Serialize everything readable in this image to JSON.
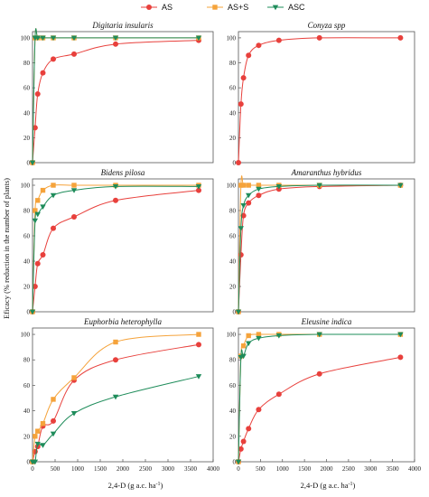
{
  "legend": [
    {
      "name": "AS",
      "color": "#e8403c",
      "marker": "circle"
    },
    {
      "name": "AS+S",
      "color": "#f5a33b",
      "marker": "square"
    },
    {
      "name": "ASC",
      "color": "#1e8c5a",
      "marker": "triangle-down"
    }
  ],
  "ylabel": "Eficacy (% reduction in the number of plants)",
  "xlabel": "2,4-D (g a.c. ha",
  "xlabel_sup": "-1",
  "xlabel_end": ")",
  "chart_data": [
    {
      "type": "scatter",
      "title": "Digitaria insularis",
      "xlim": [
        0,
        4000
      ],
      "ylim": [
        0,
        105
      ],
      "xticks": [],
      "yticks": [
        0,
        20,
        40,
        60,
        80,
        100
      ],
      "series": [
        {
          "name": "AS",
          "x": [
            0,
            57,
            115,
            230,
            460,
            920,
            1840,
            3680
          ],
          "y": [
            0,
            28,
            55,
            72,
            83,
            87,
            95,
            98
          ]
        },
        {
          "name": "AS+S",
          "x": [
            0,
            57,
            115,
            230,
            460,
            920,
            1840,
            3680
          ],
          "y": [
            0,
            100,
            100,
            100,
            100,
            100,
            100,
            100
          ]
        },
        {
          "name": "ASC",
          "x": [
            0,
            57,
            115,
            230,
            460,
            920,
            1840,
            3680
          ],
          "y": [
            0,
            100,
            100,
            100,
            100,
            100,
            100,
            100
          ]
        }
      ]
    },
    {
      "type": "scatter",
      "title": "Conyza spp",
      "xlim": [
        0,
        4000
      ],
      "ylim": [
        0,
        105
      ],
      "xticks": [],
      "yticks": [
        0,
        20,
        40,
        60,
        80,
        100
      ],
      "series": [
        {
          "name": "AS",
          "x": [
            0,
            57,
            115,
            230,
            460,
            920,
            1840,
            3680
          ],
          "y": [
            0,
            47,
            68,
            86,
            94,
            98,
            100,
            100
          ]
        }
      ]
    },
    {
      "type": "scatter",
      "title": "Bidens pilosa",
      "xlim": [
        0,
        4000
      ],
      "ylim": [
        0,
        105
      ],
      "xticks": [],
      "yticks": [
        0,
        20,
        40,
        60,
        80,
        100
      ],
      "series": [
        {
          "name": "AS",
          "x": [
            0,
            57,
            115,
            230,
            460,
            920,
            1840,
            3680
          ],
          "y": [
            0,
            20,
            38,
            45,
            66,
            75,
            88,
            96
          ]
        },
        {
          "name": "AS+S",
          "x": [
            0,
            57,
            115,
            230,
            460,
            920,
            1840,
            3680
          ],
          "y": [
            0,
            80,
            88,
            96,
            100,
            100,
            100,
            100
          ]
        },
        {
          "name": "ASC",
          "x": [
            0,
            57,
            115,
            230,
            460,
            920,
            1840,
            3680
          ],
          "y": [
            0,
            72,
            77,
            83,
            92,
            96,
            99,
            99
          ]
        }
      ]
    },
    {
      "type": "scatter",
      "title": "Amaranthus hybridus",
      "xlim": [
        0,
        4000
      ],
      "ylim": [
        0,
        105
      ],
      "xticks": [],
      "yticks": [
        0,
        20,
        40,
        60,
        80,
        100
      ],
      "series": [
        {
          "name": "AS",
          "x": [
            0,
            57,
            115,
            230,
            460,
            920,
            1840,
            3680
          ],
          "y": [
            0,
            45,
            76,
            86,
            92,
            97,
            99,
            100
          ]
        },
        {
          "name": "AS+S",
          "x": [
            0,
            57,
            115,
            230,
            460,
            920,
            1840,
            3680
          ],
          "y": [
            0,
            100,
            100,
            100,
            100,
            100,
            100,
            100
          ]
        },
        {
          "name": "ASC",
          "x": [
            0,
            57,
            115,
            230,
            460,
            920,
            1840,
            3680
          ],
          "y": [
            0,
            66,
            84,
            92,
            97,
            99,
            100,
            100
          ]
        }
      ]
    },
    {
      "type": "scatter",
      "title": "Euphorbia heterophylla",
      "xlim": [
        0,
        4000
      ],
      "ylim": [
        0,
        105
      ],
      "xticks": [
        0,
        500,
        1000,
        1500,
        2000,
        2500,
        3000,
        3500,
        4000
      ],
      "yticks": [
        0,
        20,
        40,
        60,
        80,
        100
      ],
      "series": [
        {
          "name": "AS",
          "x": [
            0,
            57,
            115,
            230,
            460,
            920,
            1840,
            3680
          ],
          "y": [
            0,
            8,
            12,
            28,
            32,
            64,
            80,
            92
          ]
        },
        {
          "name": "AS+S",
          "x": [
            0,
            57,
            115,
            230,
            460,
            920,
            1840,
            3680
          ],
          "y": [
            0,
            20,
            24,
            30,
            49,
            66,
            94,
            100
          ]
        },
        {
          "name": "ASC",
          "x": [
            0,
            57,
            115,
            230,
            460,
            920,
            1840,
            3680
          ],
          "y": [
            0,
            0,
            14,
            13,
            22,
            38,
            51,
            67
          ]
        }
      ]
    },
    {
      "type": "scatter",
      "title": "Eleusine indica",
      "xlim": [
        0,
        4000
      ],
      "ylim": [
        0,
        105
      ],
      "xticks": [
        0,
        500,
        1000,
        1500,
        2000,
        2500,
        3000,
        3500,
        4000
      ],
      "yticks": [
        0,
        20,
        40,
        60,
        80,
        100
      ],
      "series": [
        {
          "name": "AS",
          "x": [
            0,
            57,
            115,
            230,
            460,
            920,
            1840,
            3680
          ],
          "y": [
            0,
            10,
            16,
            26,
            41,
            53,
            69,
            82
          ]
        },
        {
          "name": "AS+S",
          "x": [
            0,
            57,
            115,
            230,
            460,
            920,
            1840,
            3680
          ],
          "y": [
            0,
            83,
            91,
            99,
            100,
            100,
            100,
            100
          ]
        },
        {
          "name": "ASC",
          "x": [
            0,
            57,
            115,
            230,
            460,
            920,
            1840,
            3680
          ],
          "y": [
            0,
            82,
            83,
            93,
            97,
            99,
            100,
            100
          ]
        }
      ]
    }
  ]
}
